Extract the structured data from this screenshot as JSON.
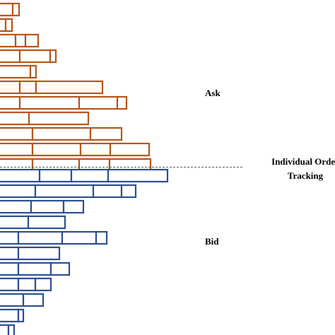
{
  "labels": {
    "ask": "Ask",
    "bid": "Bid",
    "tracking_line1": "Individual Order",
    "tracking_line2": "Tracking"
  },
  "colors": {
    "ask": "#b5561c",
    "bid": "#2e4f8f",
    "divider": "#555555"
  },
  "order_book": {
    "ask_levels": [
      {
        "orders": [
          2,
          0.9
        ]
      },
      {
        "orders": [
          1,
          0.9
        ]
      },
      {
        "orders": [
          2.4,
          1.4,
          1.8
        ]
      },
      {
        "orders": [
          3,
          4.3,
          0.8
        ]
      },
      {
        "orders": [
          4.5,
          0.8
        ]
      },
      {
        "orders": [
          3,
          2.3,
          9.4
        ]
      },
      {
        "orders": [
          3,
          8.4,
          5.4,
          1.3
        ]
      },
      {
        "orders": [
          4.3,
          8.4
        ]
      },
      {
        "orders": [
          4.8,
          8.2,
          4.4
        ]
      },
      {
        "orders": [
          4.8,
          6.8,
          4.2,
          5.5
        ]
      },
      {
        "orders": [
          4.8,
          6.6,
          4.3,
          5.8
        ]
      }
    ],
    "bid_levels": [
      {
        "orders": [
          5.8,
          4.5,
          5.2,
          8.4
        ]
      },
      {
        "orders": [
          5.2,
          8.2,
          4.0,
          2.0
        ]
      },
      {
        "orders": [
          4.6,
          4.6,
          2.8
        ]
      },
      {
        "orders": [
          4.2,
          5.2
        ]
      },
      {
        "orders": [
          2.8,
          6.2,
          4.8,
          1.5
        ]
      },
      {
        "orders": [
          2.8,
          5.8
        ]
      },
      {
        "orders": [
          2.8,
          4.6,
          2.6
        ]
      },
      {
        "orders": [
          2.8,
          2.4,
          2.2
        ]
      },
      {
        "orders": [
          3.5,
          2.8
        ]
      },
      {
        "orders": [
          2.8,
          0.7
        ]
      },
      {
        "orders": [
          1.4,
          0.8
        ]
      }
    ]
  }
}
